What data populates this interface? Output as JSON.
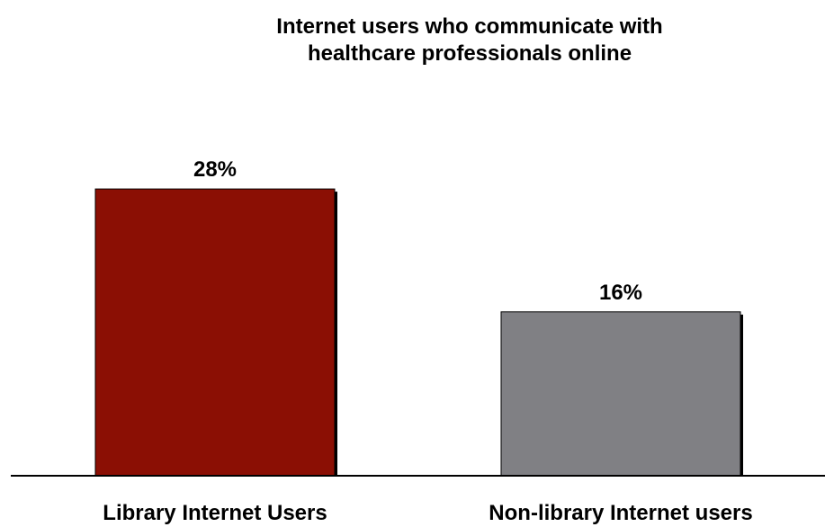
{
  "chart_data": {
    "type": "bar",
    "title": [
      "Internet users who communicate with",
      "healthcare professionals online"
    ],
    "categories": [
      "Library Internet Users",
      "Non-library Internet users"
    ],
    "values": [
      28,
      16
    ],
    "data_labels": [
      "28%",
      "16%"
    ],
    "colors": [
      "#8b0f04",
      "#808084"
    ],
    "ylim": [
      0,
      36
    ],
    "grid": false,
    "legend": "none",
    "xlabel": "",
    "ylabel": ""
  }
}
